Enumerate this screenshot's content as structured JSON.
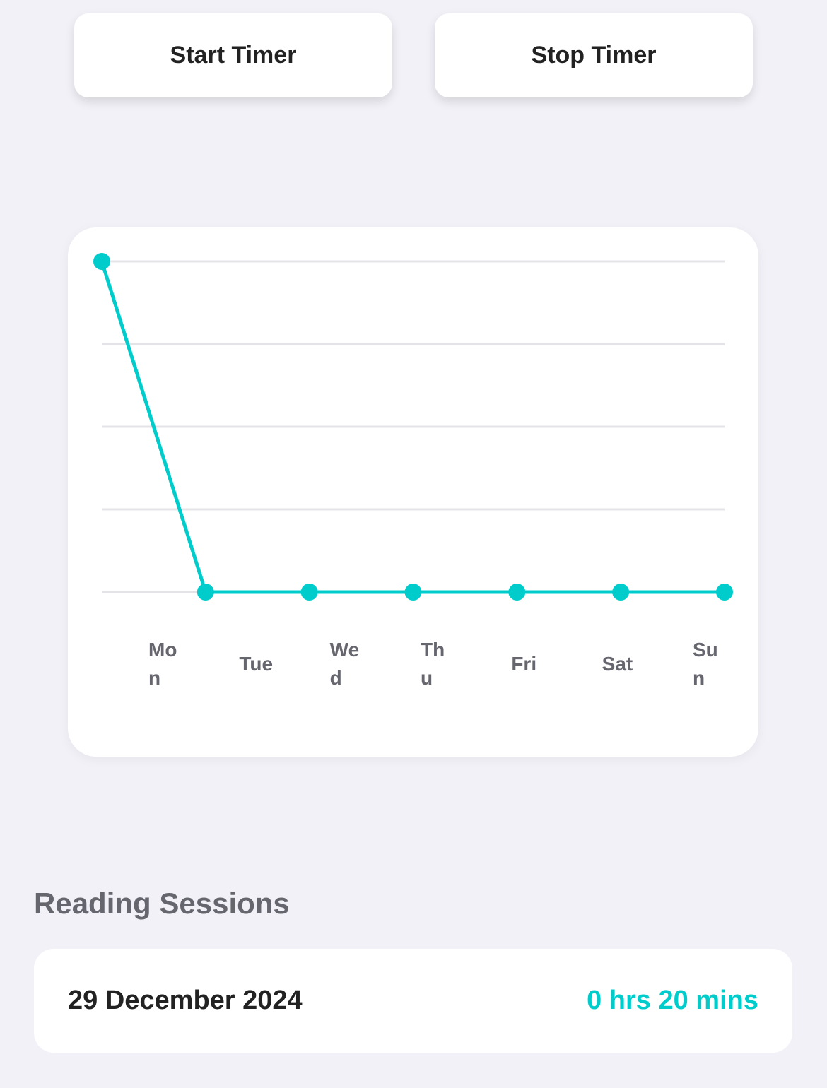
{
  "buttons": [
    "Start Timer",
    "Stop Timer"
  ],
  "chart_data": {
    "type": "line",
    "categories": [
      "Mon",
      "Tue",
      "Wed",
      "Thu",
      "Fri",
      "Sat",
      "Sun"
    ],
    "values": [
      20,
      0,
      0,
      0,
      0,
      0,
      0
    ],
    "color": "#00cccc",
    "ylim": [
      0,
      20
    ],
    "yticks": [
      0,
      5,
      10,
      15,
      20
    ],
    "grid": true
  },
  "sessions": {
    "title": "Reading Sessions",
    "items": [
      {
        "date": "29 December 2024",
        "duration": "0 hrs 20 mins"
      }
    ]
  }
}
